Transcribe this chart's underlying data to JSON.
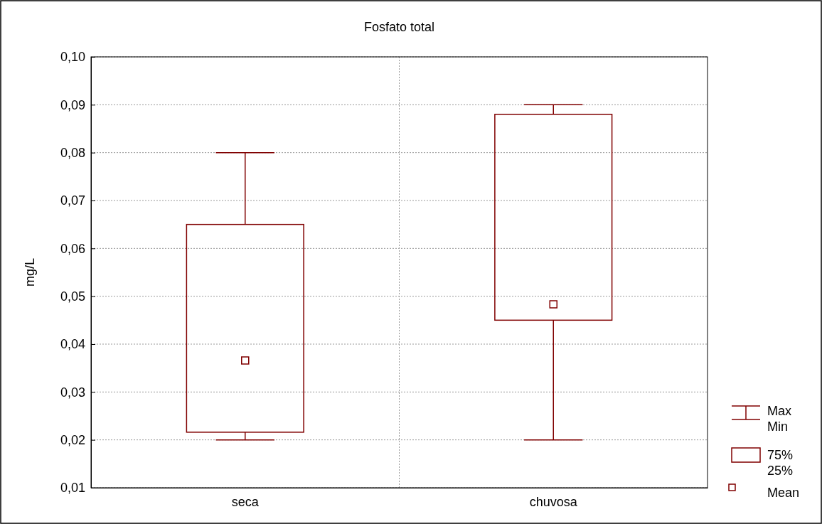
{
  "chart_data": {
    "type": "box",
    "title": "Fosfato total",
    "ylabel": "mg/L",
    "categories": [
      "seca",
      "chuvosa"
    ],
    "color": "#800000",
    "boxes": [
      {
        "low": 0.02,
        "q1": 0.0216,
        "q3": 0.065,
        "high": 0.08,
        "mean": 0.0366
      },
      {
        "low": 0.02,
        "q1": 0.045,
        "q3": 0.088,
        "high": 0.09,
        "mean": 0.0483
      }
    ],
    "ylim": [
      0.01,
      0.1
    ],
    "yticks": [
      {
        "value": 0.01,
        "label": "0,01"
      },
      {
        "value": 0.02,
        "label": "0,02"
      },
      {
        "value": 0.03,
        "label": "0,03"
      },
      {
        "value": 0.04,
        "label": "0,04"
      },
      {
        "value": 0.05,
        "label": "0,05"
      },
      {
        "value": 0.06,
        "label": "0,06"
      },
      {
        "value": 0.07,
        "label": "0,07"
      },
      {
        "value": 0.08,
        "label": "0,08"
      },
      {
        "value": 0.09,
        "label": "0,09"
      },
      {
        "value": 0.1,
        "label": "0,10"
      }
    ],
    "grid": true,
    "marker": "square",
    "annotations": [
      "Max",
      "Min",
      "75%",
      "25%",
      "Mean"
    ]
  }
}
